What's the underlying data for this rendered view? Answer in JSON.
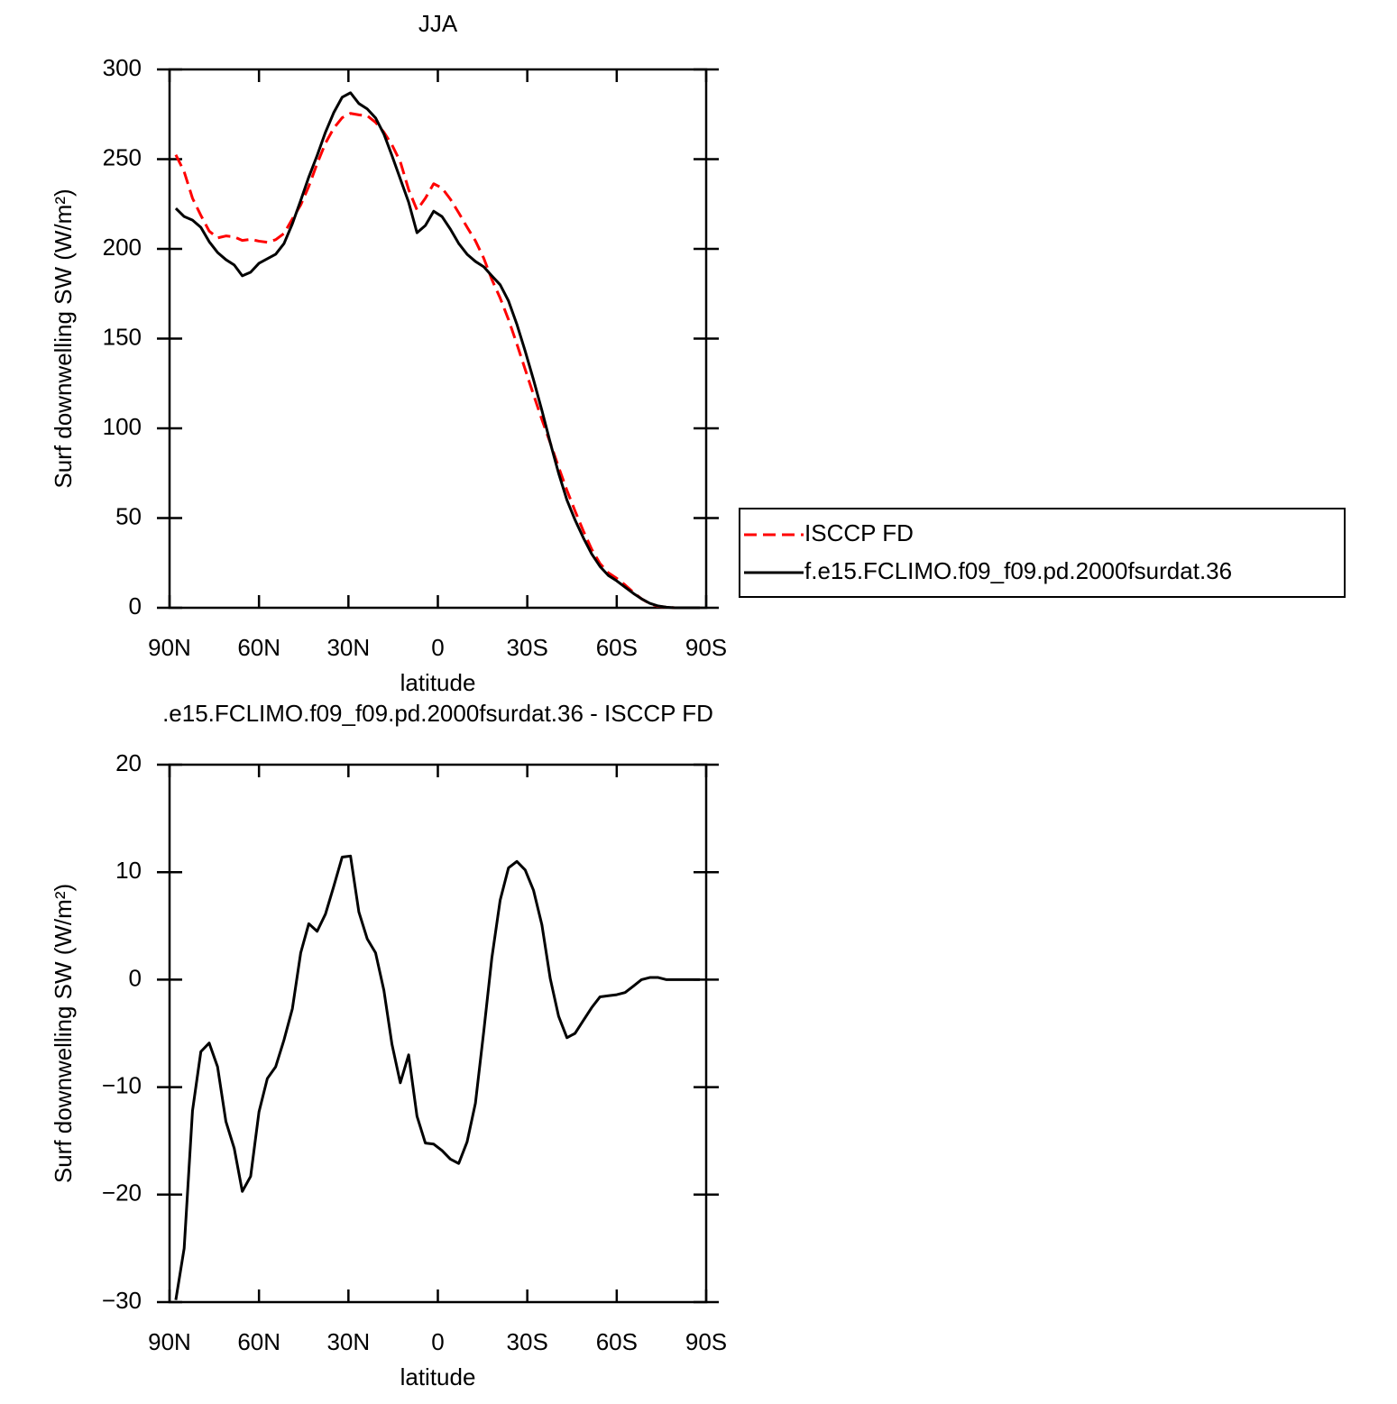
{
  "chart_data": [
    {
      "type": "line",
      "title": "JJA",
      "xlabel": "latitude",
      "ylabel": "Surf downwelling SW (W/m²)",
      "x": [
        87.9,
        85.1,
        82.3,
        79.5,
        76.7,
        73.9,
        71.1,
        68.3,
        65.6,
        62.8,
        60.0,
        57.2,
        54.4,
        51.6,
        48.8,
        46.0,
        43.3,
        40.5,
        37.7,
        34.9,
        32.1,
        29.3,
        26.5,
        23.7,
        20.9,
        18.1,
        15.4,
        12.6,
        9.8,
        7.0,
        4.2,
        1.4,
        -1.4,
        -4.2,
        -7.0,
        -9.8,
        -12.6,
        -15.4,
        -18.1,
        -20.9,
        -23.7,
        -26.5,
        -29.3,
        -32.1,
        -34.9,
        -37.7,
        -40.5,
        -43.3,
        -46.0,
        -48.8,
        -51.6,
        -54.4,
        -57.2,
        -60.0,
        -62.8,
        -65.6,
        -68.3,
        -71.1,
        -73.9,
        -76.7,
        -79.5,
        -82.3,
        -85.1,
        -87.9
      ],
      "series": [
        {
          "name": "ISCCP FD",
          "color": "#ff0000",
          "dashed": true,
          "values": [
            252.4,
            243,
            228.2,
            218.7,
            209.9,
            206.1,
            207.2,
            206.7,
            204.7,
            205.3,
            204.3,
            203.7,
            205.1,
            208.6,
            216.7,
            224.5,
            234.8,
            247.5,
            258.9,
            267.3,
            273.1,
            275.5,
            274.7,
            274.2,
            270.5,
            265,
            258,
            248.6,
            233,
            221.7,
            228.2,
            236.3,
            233.9,
            227.7,
            220.1,
            212.1,
            204.5,
            194.8,
            183,
            172.6,
            160.6,
            147,
            132.8,
            118.7,
            104.9,
            91.9,
            78.4,
            65.4,
            54,
            42.8,
            32.6,
            24.6,
            19.5,
            16.4,
            12.7,
            8.6,
            5,
            2.3,
            0.8,
            0.3,
            0,
            0,
            0,
            0
          ]
        },
        {
          "name": "f.e15.FCLIMO.f09_f09.pd.2000fsurdat.36",
          "color": "#000000",
          "dashed": false,
          "values": [
            222.6,
            218,
            216,
            212,
            204,
            198,
            194,
            191,
            185,
            187,
            192,
            194.5,
            197,
            203,
            214,
            227,
            240,
            252,
            265,
            276,
            284.5,
            287,
            281,
            278,
            273,
            264,
            252,
            239,
            226,
            209,
            213,
            221,
            218,
            211,
            203,
            197,
            193,
            190,
            185,
            180,
            171,
            158,
            143,
            127,
            110,
            92,
            75,
            60,
            49,
            39,
            30,
            23,
            18,
            15,
            11.5,
            8,
            5,
            2.5,
            1,
            0.3,
            0,
            0,
            0,
            0
          ]
        }
      ],
      "xlim": [
        90,
        -90
      ],
      "xticks": [
        {
          "value": 90,
          "label": "90N"
        },
        {
          "value": 60,
          "label": "60N"
        },
        {
          "value": 30,
          "label": "30N"
        },
        0,
        {
          "value": -30,
          "label": "30S"
        },
        {
          "value": -60,
          "label": "60S"
        },
        {
          "value": -90,
          "label": "90S"
        }
      ],
      "ylim": [
        0,
        300
      ],
      "yticks": [
        0,
        50,
        100,
        150,
        200,
        250,
        300
      ],
      "legend": "right"
    },
    {
      "type": "line",
      "title": ".e15.FCLIMO.f09_f09.pd.2000fsurdat.36 - ISCCP FD",
      "xlabel": "latitude",
      "ylabel": "Surf downwelling SW (W/m²)",
      "x": [
        87.9,
        85.1,
        82.3,
        79.5,
        76.7,
        73.9,
        71.1,
        68.3,
        65.6,
        62.8,
        60.0,
        57.2,
        54.4,
        51.6,
        48.8,
        46.0,
        43.3,
        40.5,
        37.7,
        34.9,
        32.1,
        29.3,
        26.5,
        23.7,
        20.9,
        18.1,
        15.4,
        12.6,
        9.8,
        7.0,
        4.2,
        1.4,
        -1.4,
        -4.2,
        -7.0,
        -9.8,
        -12.6,
        -15.4,
        -18.1,
        -20.9,
        -23.7,
        -26.5,
        -29.3,
        -32.1,
        -34.9,
        -37.7,
        -40.5,
        -43.3,
        -46.0,
        -48.8,
        -51.6,
        -54.4,
        -57.2,
        -60.0,
        -62.8,
        -65.6,
        -68.3,
        -71.1,
        -73.9,
        -76.7,
        -79.5,
        -82.3,
        -85.1,
        -87.9
      ],
      "series": [
        {
          "color": "#000000",
          "dashed": false,
          "values": [
            -29.8,
            -25,
            -12.2,
            -6.7,
            -5.9,
            -8.1,
            -13.2,
            -15.7,
            -19.7,
            -18.3,
            -12.3,
            -9.2,
            -8.1,
            -5.6,
            -2.7,
            2.5,
            5.2,
            4.5,
            6.1,
            8.7,
            11.4,
            11.5,
            6.3,
            3.8,
            2.5,
            -1,
            -6,
            -9.6,
            -7,
            -12.7,
            -15.2,
            -15.3,
            -15.9,
            -16.7,
            -17.1,
            -15.1,
            -11.5,
            -4.8,
            2,
            7.4,
            10.4,
            11,
            10.2,
            8.3,
            5.1,
            0.1,
            -3.4,
            -5.4,
            -5,
            -3.8,
            -2.6,
            -1.6,
            -1.5,
            -1.4,
            -1.2,
            -0.6,
            0,
            0.2,
            0.2,
            0,
            0,
            0,
            0,
            0
          ]
        }
      ],
      "xlim": [
        90,
        -90
      ],
      "xticks": [
        {
          "value": 90,
          "label": "90N"
        },
        {
          "value": 60,
          "label": "60N"
        },
        {
          "value": 30,
          "label": "30N"
        },
        0,
        {
          "value": -30,
          "label": "30S"
        },
        {
          "value": -60,
          "label": "60S"
        },
        {
          "value": -90,
          "label": "90S"
        }
      ],
      "ylim": [
        -30,
        20
      ],
      "yticks": [
        {
          "value": -30,
          "label": "−30"
        },
        {
          "value": -20,
          "label": "−20"
        },
        {
          "value": -10,
          "label": "−10"
        },
        0,
        10,
        20
      ]
    }
  ]
}
